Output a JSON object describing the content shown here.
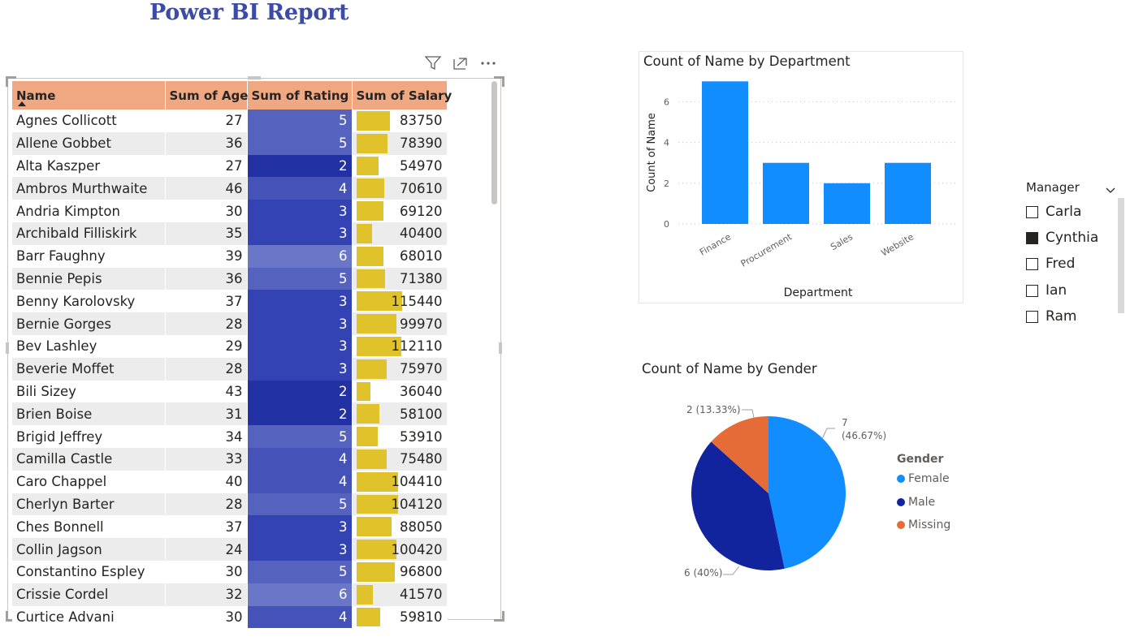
{
  "report": {
    "title": "Power BI Report"
  },
  "table": {
    "headers": [
      "Name",
      "Sum of Age",
      "Sum of Rating",
      "Sum of Salary"
    ],
    "rows": [
      {
        "name": "Agnes Collicott",
        "age": "27",
        "rating": "5",
        "salary": "83750"
      },
      {
        "name": "Allene Gobbet",
        "age": "36",
        "rating": "5",
        "salary": "78390"
      },
      {
        "name": "Alta Kaszper",
        "age": "27",
        "rating": "2",
        "salary": "54970"
      },
      {
        "name": "Ambros Murthwaite",
        "age": "46",
        "rating": "4",
        "salary": "70610"
      },
      {
        "name": "Andria Kimpton",
        "age": "30",
        "rating": "3",
        "salary": "69120"
      },
      {
        "name": "Archibald Filliskirk",
        "age": "35",
        "rating": "3",
        "salary": "40400"
      },
      {
        "name": "Barr Faughny",
        "age": "39",
        "rating": "6",
        "salary": "68010"
      },
      {
        "name": "Bennie Pepis",
        "age": "36",
        "rating": "5",
        "salary": "71380"
      },
      {
        "name": "Benny Karolovsky",
        "age": "37",
        "rating": "3",
        "salary": "115440"
      },
      {
        "name": "Bernie Gorges",
        "age": "28",
        "rating": "3",
        "salary": "99970"
      },
      {
        "name": "Bev Lashley",
        "age": "29",
        "rating": "3",
        "salary": "112110"
      },
      {
        "name": "Beverie Moffet",
        "age": "28",
        "rating": "3",
        "salary": "75970"
      },
      {
        "name": "Bili Sizey",
        "age": "43",
        "rating": "2",
        "salary": "36040"
      },
      {
        "name": "Brien Boise",
        "age": "31",
        "rating": "2",
        "salary": "58100"
      },
      {
        "name": "Brigid Jeffrey",
        "age": "34",
        "rating": "5",
        "salary": "53910"
      },
      {
        "name": "Camilla Castle",
        "age": "33",
        "rating": "4",
        "salary": "75480"
      },
      {
        "name": "Caro Chappel",
        "age": "40",
        "rating": "4",
        "salary": "104410"
      },
      {
        "name": "Cherlyn Barter",
        "age": "28",
        "rating": "5",
        "salary": "104120"
      },
      {
        "name": "Ches Bonnell",
        "age": "37",
        "rating": "3",
        "salary": "88050"
      },
      {
        "name": "Collin Jagson",
        "age": "24",
        "rating": "3",
        "salary": "100420"
      },
      {
        "name": "Constantino Espley",
        "age": "30",
        "rating": "5",
        "salary": "96800"
      },
      {
        "name": "Crissie Cordel",
        "age": "32",
        "rating": "6",
        "salary": "41570"
      },
      {
        "name": "Curtice Advani",
        "age": "30",
        "rating": "4",
        "salary": "59810"
      }
    ],
    "rating_colors": {
      "2": "#2231a3",
      "3": "#3343b3",
      "4": "#4553b8",
      "5": "#5663be",
      "6": "#6a76c6"
    },
    "salary_bar_color": "#e0c22a",
    "header_color": "#f0a883"
  },
  "visual_icons": [
    "filter-icon",
    "focus-mode-icon",
    "more-options-icon"
  ],
  "bar_chart": {
    "chart_data": {
      "type": "bar",
      "title": "Count of Name by Department",
      "xlabel": "Department",
      "ylabel": "Count of Name",
      "categories": [
        "Finance",
        "Procurement",
        "Sales",
        "Website"
      ],
      "values": [
        7,
        3,
        2,
        3
      ],
      "ylim": [
        0,
        7
      ],
      "yticks": [
        "0",
        "2",
        "4",
        "6"
      ],
      "grid": true,
      "color": "#118dff"
    }
  },
  "pie_chart": {
    "chart_data": {
      "type": "pie",
      "title": "Count of Name by Gender",
      "legend_title": "Gender",
      "categories": [
        "Female",
        "Male",
        "Missing"
      ],
      "values": [
        7,
        6,
        2
      ],
      "labels": [
        [
          "7",
          "(46.67%)"
        ],
        [
          "6 (40%)"
        ],
        [
          "2 (13.33%)"
        ]
      ],
      "colors": [
        "#118dff",
        "#12239e",
        "#e66c37"
      ],
      "legend_position": "right"
    }
  },
  "slicer": {
    "title": "Manager",
    "items": [
      {
        "label": "Carla",
        "checked": false
      },
      {
        "label": "Cynthia",
        "checked": true
      },
      {
        "label": "Fred",
        "checked": false
      },
      {
        "label": "Ian",
        "checked": false
      },
      {
        "label": "Ram",
        "checked": false
      }
    ]
  }
}
